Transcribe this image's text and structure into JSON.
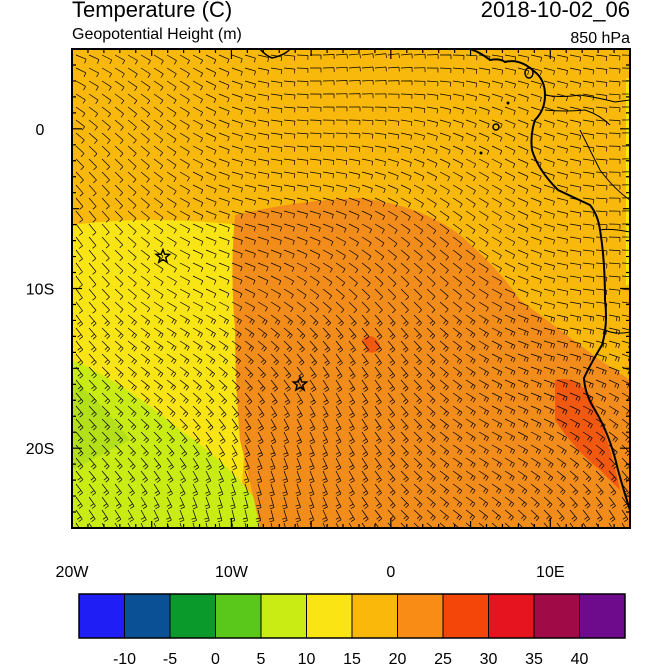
{
  "header": {
    "title": "Temperature (C)",
    "subtitle": "Geopotential Height (m)",
    "valid_time": "2018-10-02_06",
    "level": "850 hPa"
  },
  "axes": {
    "lon_labels": [
      "20W",
      "10W",
      "0",
      "10E"
    ],
    "lon_values": [
      -20,
      -10,
      0,
      10
    ],
    "lat_labels": [
      "0",
      "10S",
      "20S"
    ],
    "lat_values": [
      0,
      -10,
      -20
    ],
    "lon_range": [
      -20,
      15
    ],
    "lat_range": [
      -25,
      5
    ]
  },
  "colorbar": {
    "labels": [
      "-10",
      "-5",
      "0",
      "5",
      "10",
      "15",
      "20",
      "25",
      "30",
      "35",
      "40"
    ],
    "colors": [
      "#1e1ef5",
      "#0a5095",
      "#0a9a2c",
      "#5ac81a",
      "#c8ec14",
      "#fae414",
      "#fab80a",
      "#f88c14",
      "#f5460a",
      "#e6141e",
      "#a00a46",
      "#6e0a8c"
    ]
  },
  "markers": [
    {
      "name": "station-star-1",
      "lon": -14.3,
      "lat": -8.0
    },
    {
      "name": "station-star-2",
      "lon": -5.7,
      "lat": -16.0
    }
  ],
  "fill_colors": {
    "orange": "#f9b80c",
    "dark_orange": "#f28c1a",
    "red_orange": "#f15810",
    "yellow": "#f9e414",
    "lime": "#c8ec14",
    "ocean_lime": "#b4e01a"
  }
}
